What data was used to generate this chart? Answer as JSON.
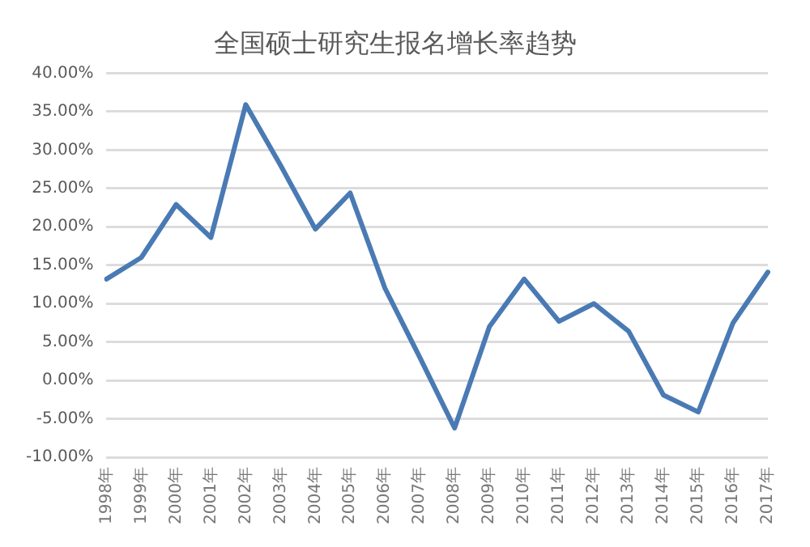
{
  "chart_data": {
    "type": "line",
    "title": "全国硕士研究生报名增长率趋势",
    "categories": [
      "1998年",
      "1999年",
      "2000年",
      "2001年",
      "2002年",
      "2003年",
      "2004年",
      "2005年",
      "2006年",
      "2007年",
      "2008年",
      "2009年",
      "2010年",
      "2011年",
      "2012年",
      "2013年",
      "2014年",
      "2015年",
      "2016年",
      "2017年"
    ],
    "series": [
      {
        "color": "#4a7ab4",
        "values": [
          13.2,
          16,
          22.9,
          18.6,
          35.9,
          28,
          19.7,
          24.4,
          12,
          3,
          -6.2,
          7,
          13.2,
          7.7,
          10,
          6.4,
          -1.9,
          -4.1,
          7.5,
          14.1
        ]
      }
    ],
    "ylim": [
      -10,
      40
    ],
    "yticks": [
      {
        "value": -10,
        "label": "-10.00%"
      },
      {
        "value": -5,
        "label": "-5.00%"
      },
      {
        "value": 0,
        "label": "0.00%"
      },
      {
        "value": 5,
        "label": "5.00%"
      },
      {
        "value": 10,
        "label": "10.00%"
      },
      {
        "value": 15,
        "label": "15.00%"
      },
      {
        "value": 20,
        "label": "20.00%"
      },
      {
        "value": 25,
        "label": "25.00%"
      },
      {
        "value": 30,
        "label": "30.00%"
      },
      {
        "value": 35,
        "label": "35.00%"
      },
      {
        "value": 40,
        "label": "40.00%"
      }
    ],
    "grid": "y",
    "legend": false,
    "marker": "none",
    "line_style": "solid"
  }
}
